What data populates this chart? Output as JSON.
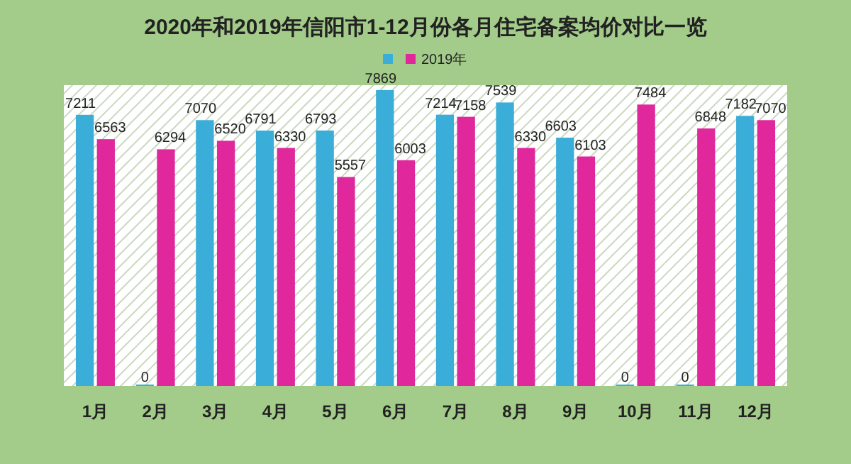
{
  "chart_data": {
    "type": "bar",
    "title": "2020年和2019年信阳市1-12月份各月住宅备案均价对比一览",
    "categories": [
      "1月",
      "2月",
      "3月",
      "4月",
      "5月",
      "6月",
      "7月",
      "8月",
      "9月",
      "10月",
      "11月",
      "12月"
    ],
    "series": [
      {
        "color": "#3aaed8",
        "values": [
          7211,
          0,
          7070,
          6791,
          6793,
          7869,
          7214,
          7539,
          6603,
          0,
          0,
          7182
        ]
      },
      {
        "name": "2019年",
        "color": "#e0289c",
        "values": [
          6563,
          6294,
          6520,
          6330,
          5557,
          6003,
          7158,
          6330,
          6103,
          7484,
          6848,
          7070
        ]
      }
    ],
    "ylim": [
      0,
      8000
    ],
    "data_labels": true,
    "legend": "top",
    "tick_labels": "x"
  }
}
